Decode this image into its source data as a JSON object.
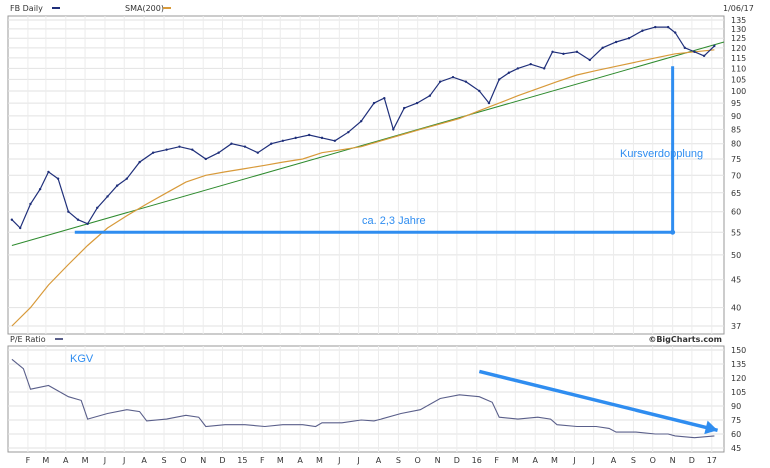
{
  "chart_data": [
    {
      "type": "line",
      "title": "FB Daily",
      "date_label": "1/06/17",
      "series": [
        {
          "name": "FB Daily",
          "color": "#1f2f7a",
          "x": [
            "2014-01-07",
            "2014-01-20",
            "2014-02-05",
            "2014-02-20",
            "2014-03-05",
            "2014-03-20",
            "2014-04-05",
            "2014-04-20",
            "2014-05-05",
            "2014-05-20",
            "2014-06-05",
            "2014-06-20",
            "2014-07-05",
            "2014-07-25",
            "2014-08-15",
            "2014-09-05",
            "2014-09-25",
            "2014-10-15",
            "2014-11-05",
            "2014-11-25",
            "2014-12-15",
            "2015-01-05",
            "2015-01-25",
            "2015-02-15",
            "2015-03-05",
            "2015-03-25",
            "2015-04-15",
            "2015-05-05",
            "2015-05-25",
            "2015-06-15",
            "2015-07-05",
            "2015-07-25",
            "2015-08-10",
            "2015-08-24",
            "2015-09-10",
            "2015-09-30",
            "2015-10-20",
            "2015-11-05",
            "2015-11-25",
            "2015-12-15",
            "2016-01-05",
            "2016-01-20",
            "2016-02-05",
            "2016-02-20",
            "2016-03-05",
            "2016-03-25",
            "2016-04-15",
            "2016-04-28",
            "2016-05-15",
            "2016-06-05",
            "2016-06-25",
            "2016-07-15",
            "2016-08-05",
            "2016-08-25",
            "2016-09-15",
            "2016-10-05",
            "2016-10-25",
            "2016-11-05",
            "2016-11-20",
            "2016-12-05",
            "2016-12-20",
            "2017-01-05"
          ],
          "values": [
            58,
            56,
            62,
            66,
            71,
            69,
            60,
            58,
            57,
            61,
            64,
            67,
            69,
            74,
            77,
            78,
            79,
            78,
            75,
            77,
            80,
            79,
            77,
            80,
            81,
            82,
            83,
            82,
            81,
            84,
            88,
            95,
            97,
            85,
            93,
            95,
            98,
            104,
            106,
            104,
            100,
            95,
            105,
            108,
            110,
            112,
            110,
            118,
            117,
            118,
            114,
            120,
            123,
            125,
            129,
            131,
            131,
            128,
            120,
            118,
            116,
            121
          ]
        },
        {
          "name": "SMA(200)",
          "color": "#d89a3a",
          "x": [
            "2014-01-07",
            "2014-02-05",
            "2014-03-05",
            "2014-04-05",
            "2014-05-05",
            "2014-06-05",
            "2014-07-05",
            "2014-08-05",
            "2014-09-05",
            "2014-10-05",
            "2014-11-05",
            "2014-12-05",
            "2015-01-05",
            "2015-02-05",
            "2015-03-05",
            "2015-04-05",
            "2015-05-05",
            "2015-06-05",
            "2015-07-05",
            "2015-08-05",
            "2015-09-05",
            "2015-10-05",
            "2015-11-05",
            "2015-12-05",
            "2016-01-05",
            "2016-02-05",
            "2016-03-05",
            "2016-04-05",
            "2016-05-05",
            "2016-06-05",
            "2016-07-05",
            "2016-08-05",
            "2016-09-05",
            "2016-10-05",
            "2016-11-05",
            "2016-12-05",
            "2017-01-05"
          ],
          "values": [
            37,
            40,
            44,
            48,
            52,
            56,
            59,
            62,
            65,
            68,
            70,
            71,
            72,
            73,
            74,
            75,
            77,
            78,
            79,
            81,
            83,
            85,
            87,
            89,
            92,
            95,
            98,
            101,
            104,
            107,
            109,
            111,
            113,
            115,
            117,
            118,
            119
          ]
        }
      ],
      "trendline": {
        "name": "Trend",
        "color": "#2e8b2e",
        "x": [
          "2014-01-07",
          "2017-01-20"
        ],
        "values": [
          52,
          123
        ]
      },
      "annotations": [
        {
          "text": "ca. 2,3 Jahre",
          "color": "#2f8df0"
        },
        {
          "text": "Kursverdopplung",
          "color": "#2f8df0"
        }
      ],
      "ylim": [
        37,
        135
      ],
      "yscale": "log",
      "ytick_labels": [
        "135",
        "130",
        "125",
        "120",
        "115",
        "110",
        "105",
        "100",
        "95",
        "90",
        "85",
        "80",
        "75",
        "70",
        "65",
        "60",
        "55",
        "50",
        "45",
        "40",
        "37"
      ],
      "xtick_labels": [
        "F",
        "M",
        "A",
        "M",
        "J",
        "J",
        "A",
        "S",
        "O",
        "N",
        "D",
        "15",
        "F",
        "M",
        "A",
        "M",
        "J",
        "J",
        "A",
        "S",
        "O",
        "N",
        "D",
        "16",
        "F",
        "M",
        "A",
        "M",
        "J",
        "J",
        "A",
        "S",
        "O",
        "N",
        "D",
        "17"
      ],
      "grid": true
    },
    {
      "type": "line",
      "title": "P/E Ratio",
      "series": [
        {
          "name": "P/E Ratio",
          "color": "#5a5f8a",
          "x": [
            "2014-01-07",
            "2014-01-25",
            "2014-02-05",
            "2014-03-05",
            "2014-04-05",
            "2014-04-25",
            "2014-05-05",
            "2014-06-05",
            "2014-07-05",
            "2014-07-25",
            "2014-08-05",
            "2014-09-05",
            "2014-10-05",
            "2014-10-25",
            "2014-11-05",
            "2014-12-05",
            "2015-01-05",
            "2015-02-05",
            "2015-03-05",
            "2015-04-05",
            "2015-04-25",
            "2015-05-05",
            "2015-06-05",
            "2015-07-05",
            "2015-07-25",
            "2015-08-05",
            "2015-09-05",
            "2015-10-05",
            "2015-11-05",
            "2015-12-05",
            "2016-01-05",
            "2016-01-25",
            "2016-02-05",
            "2016-03-05",
            "2016-04-05",
            "2016-04-25",
            "2016-05-05",
            "2016-06-05",
            "2016-07-05",
            "2016-07-25",
            "2016-08-05",
            "2016-09-05",
            "2016-10-05",
            "2016-10-25",
            "2016-11-05",
            "2016-12-05",
            "2017-01-05"
          ],
          "values": [
            140,
            130,
            108,
            112,
            100,
            96,
            76,
            82,
            86,
            84,
            74,
            76,
            80,
            78,
            68,
            70,
            70,
            68,
            70,
            70,
            68,
            72,
            72,
            75,
            74,
            76,
            82,
            86,
            98,
            102,
            100,
            94,
            78,
            76,
            78,
            76,
            70,
            68,
            68,
            66,
            62,
            62,
            60,
            60,
            58,
            56,
            58
          ]
        }
      ],
      "ylim": [
        45,
        150
      ],
      "ytick_labels": [
        "150",
        "135",
        "120",
        "105",
        "90",
        "75",
        "60",
        "45"
      ],
      "xtick_labels": [
        "F",
        "M",
        "A",
        "M",
        "J",
        "J",
        "A",
        "S",
        "O",
        "N",
        "D",
        "15",
        "F",
        "M",
        "A",
        "M",
        "J",
        "J",
        "A",
        "S",
        "O",
        "N",
        "D",
        "16",
        "F",
        "M",
        "A",
        "M",
        "J",
        "J",
        "A",
        "S",
        "O",
        "N",
        "D",
        "17"
      ],
      "annotations": [
        {
          "text": "KGV",
          "color": "#2f8df0"
        }
      ],
      "grid": true
    }
  ],
  "header": {
    "top_left": "FB Daily",
    "sma_label": "SMA(200)",
    "date": "1/06/17"
  },
  "lower_header": {
    "left": "P/E Ratio",
    "right": "©BigCharts.com"
  },
  "colors": {
    "price": "#1f2f7a",
    "sma": "#d89a3a",
    "trend": "#2e8b2e",
    "annotation": "#2f8df0",
    "grid": "#d8d8d8"
  }
}
